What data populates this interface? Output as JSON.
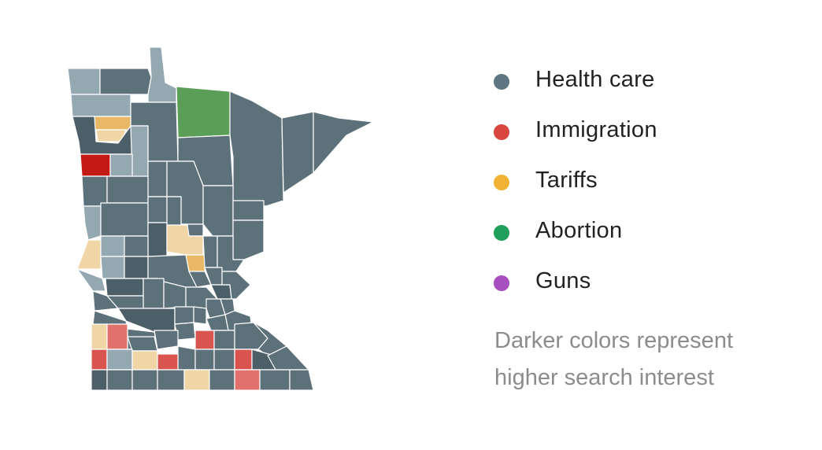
{
  "legend": {
    "items": [
      {
        "label": "Health care",
        "color": "#5e7681"
      },
      {
        "label": "Immigration",
        "color": "#d9463f"
      },
      {
        "label": "Tariffs",
        "color": "#f2b233"
      },
      {
        "label": "Abortion",
        "color": "#1fa05a"
      },
      {
        "label": "Guns",
        "color": "#a84fbe"
      }
    ]
  },
  "note": {
    "line1": "Darker colors represent",
    "line2": "higher search interest"
  },
  "map_colors": {
    "health_care_dark": "#4c5f68",
    "health_care_mid": "#5d717a",
    "health_care_light": "#93a8b1",
    "immigration_dark": "#c41a16",
    "immigration_mid": "#d9534f",
    "immigration_light": "#e0716c",
    "tariffs_mid": "#e8b866",
    "tariffs_light": "#f0d6a6",
    "abortion": "#5a9e58"
  }
}
